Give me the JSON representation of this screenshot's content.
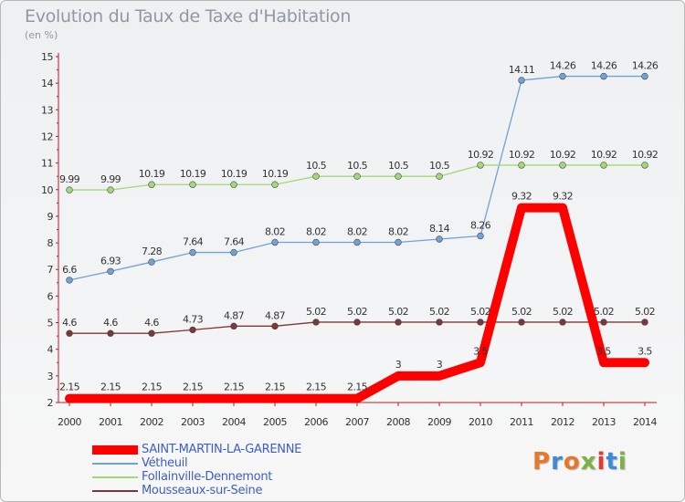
{
  "header": {
    "title": "Evolution du Taux de Taxe d'Habitation",
    "unit": "(en %)"
  },
  "chart_data": {
    "type": "line",
    "title": "Evolution du Taux de Taxe d'Habitation",
    "ylabel": "(en %)",
    "xlabel": "",
    "x": [
      "2000",
      "2001",
      "2002",
      "2003",
      "2004",
      "2005",
      "2006",
      "2007",
      "2008",
      "2009",
      "2010",
      "2011",
      "2012",
      "2013",
      "2014"
    ],
    "ylim": [
      2,
      15
    ],
    "yticks": [
      "2",
      "3",
      "4",
      "5",
      "6",
      "7",
      "8",
      "9",
      "10",
      "11",
      "12",
      "13",
      "14",
      "15"
    ],
    "grid": false,
    "legend_position": "bottom",
    "series": [
      {
        "name": "SAINT-MARTIN-LA-GARENNE",
        "color": "#ff0000",
        "values": [
          2.15,
          2.15,
          2.15,
          2.15,
          2.15,
          2.15,
          2.15,
          2.15,
          3,
          3,
          3.5,
          9.32,
          9.32,
          3.5,
          3.5
        ],
        "labels": [
          "2.15",
          "2.15",
          "2.15",
          "2.15",
          "2.15",
          "2.15",
          "2.15",
          "2.15",
          "3",
          "3",
          "3.5",
          "9.32",
          "9.32",
          "3.5",
          "3.5"
        ]
      },
      {
        "name": "Vétheuil",
        "color": "#6fa3d6",
        "values": [
          6.6,
          6.93,
          7.28,
          7.64,
          7.64,
          8.02,
          8.02,
          8.02,
          8.02,
          8.14,
          8.26,
          14.11,
          14.26,
          14.26,
          14.26
        ],
        "labels": [
          "6.6",
          "6.93",
          "7.28",
          "7.64",
          "7.64",
          "8.02",
          "8.02",
          "8.02",
          "8.02",
          "8.14",
          "8.26",
          "14.11",
          "14.26",
          "14.26",
          "14.26"
        ]
      },
      {
        "name": "Follainville-Dennemont",
        "color": "#a3d879",
        "values": [
          9.99,
          9.99,
          10.19,
          10.19,
          10.19,
          10.19,
          10.5,
          10.5,
          10.5,
          10.5,
          10.92,
          10.92,
          10.92,
          10.92,
          10.92
        ],
        "labels": [
          "9.99",
          "9.99",
          "10.19",
          "10.19",
          "10.19",
          "10.19",
          "10.5",
          "10.5",
          "10.5",
          "10.5",
          "10.92",
          "10.92",
          "10.92",
          "10.92",
          "10.92"
        ]
      },
      {
        "name": "Mousseaux-sur-Seine",
        "color": "#7a3838",
        "values": [
          4.6,
          4.6,
          4.6,
          4.73,
          4.87,
          4.87,
          5.02,
          5.02,
          5.02,
          5.02,
          5.02,
          5.02,
          5.02,
          5.02,
          5.02
        ],
        "labels": [
          "4.6",
          "4.6",
          "4.6",
          "4.73",
          "4.87",
          "4.87",
          "5.02",
          "5.02",
          "5.02",
          "5.02",
          "5.02",
          "5.02",
          "5.02",
          "5.02",
          "5.02"
        ]
      }
    ]
  },
  "logo": {
    "text": "Proxiti"
  }
}
